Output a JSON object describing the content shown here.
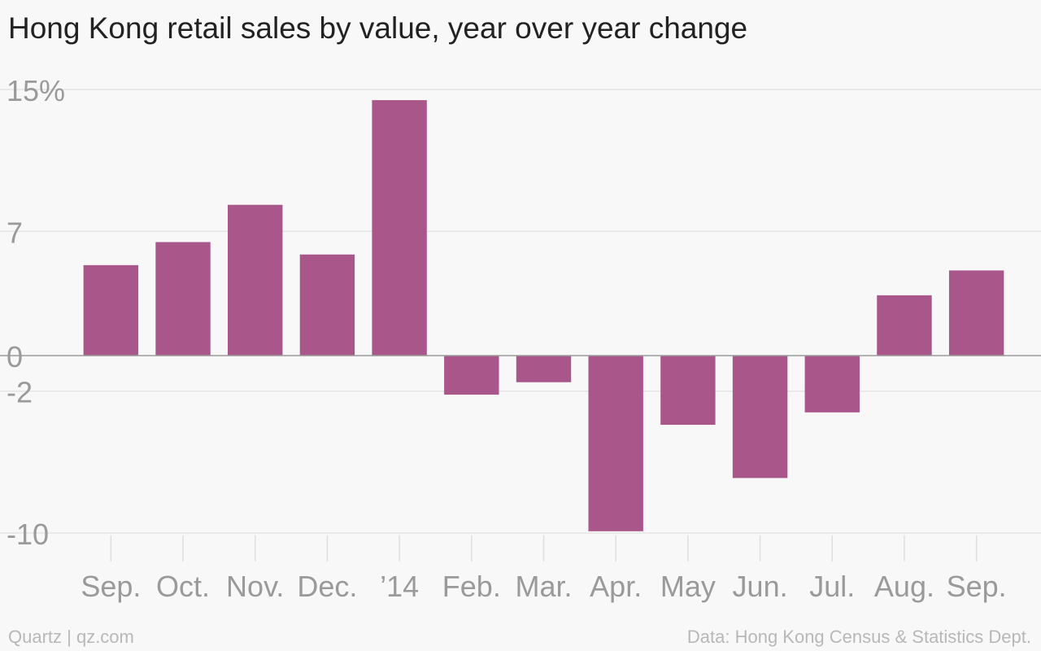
{
  "chart_data": {
    "type": "bar",
    "title": "Hong Kong retail sales by value, year over year change",
    "categories": [
      "Sep.",
      "Oct.",
      "Nov.",
      "Dec.",
      "’14",
      "Feb.",
      "Mar.",
      "Apr.",
      "May",
      "Jun.",
      "Jul.",
      "Aug.",
      "Sep."
    ],
    "values": [
      5.1,
      6.4,
      8.5,
      5.7,
      14.4,
      -2.2,
      -1.5,
      -9.9,
      -3.9,
      -6.9,
      -3.2,
      3.4,
      4.8
    ],
    "ylim": [
      -10,
      15
    ],
    "yticks": [
      15,
      7,
      0,
      -2,
      -10
    ],
    "ytick_labels": [
      "15%",
      "7",
      "0",
      "-2",
      "-10"
    ],
    "bar_color": "#a9568a",
    "grid": true,
    "xlabel": "",
    "ylabel": ""
  },
  "footer": {
    "source_left": "Quartz | qz.com",
    "source_right": "Data: Hong Kong Census & Statistics Dept."
  }
}
